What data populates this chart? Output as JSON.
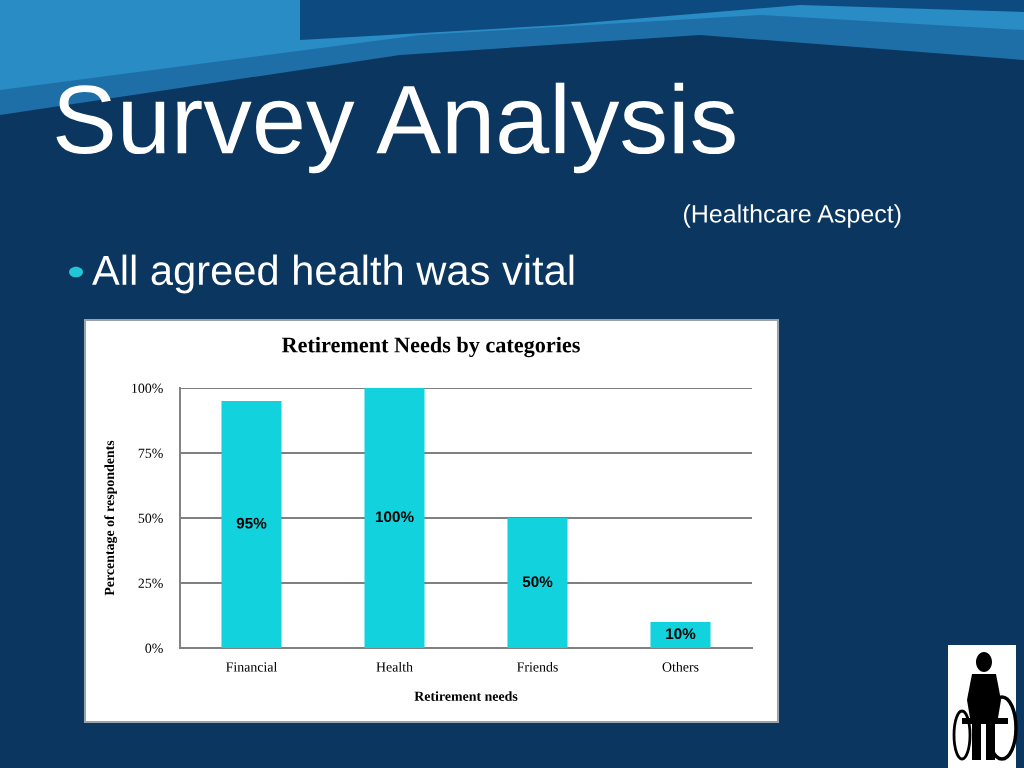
{
  "chart_data": {
    "type": "bar",
    "title": "Survey Analysis",
    "subtitle": "(Healthcare Aspect)",
    "annotations": [
      "All agreed health was vital",
      "Retirement Needs by categories"
    ],
    "xlabel": "Retirement needs",
    "ylabel": "Percentage of respondents",
    "categories": [
      "Financial",
      "Health",
      "Friends",
      "Others"
    ],
    "values": [
      95,
      100,
      50,
      10
    ],
    "value_labels": [
      "95%",
      "100%",
      "50%",
      "10%"
    ],
    "color": "#12d3dd",
    "ylim": [
      0,
      100
    ],
    "yticks": [
      {
        "value": 0,
        "label": "0%"
      },
      {
        "value": 25,
        "label": "25%"
      },
      {
        "value": 50,
        "label": "50%"
      },
      {
        "value": 75,
        "label": "75%"
      },
      {
        "value": 100,
        "label": "100%"
      }
    ],
    "grid": "y"
  }
}
